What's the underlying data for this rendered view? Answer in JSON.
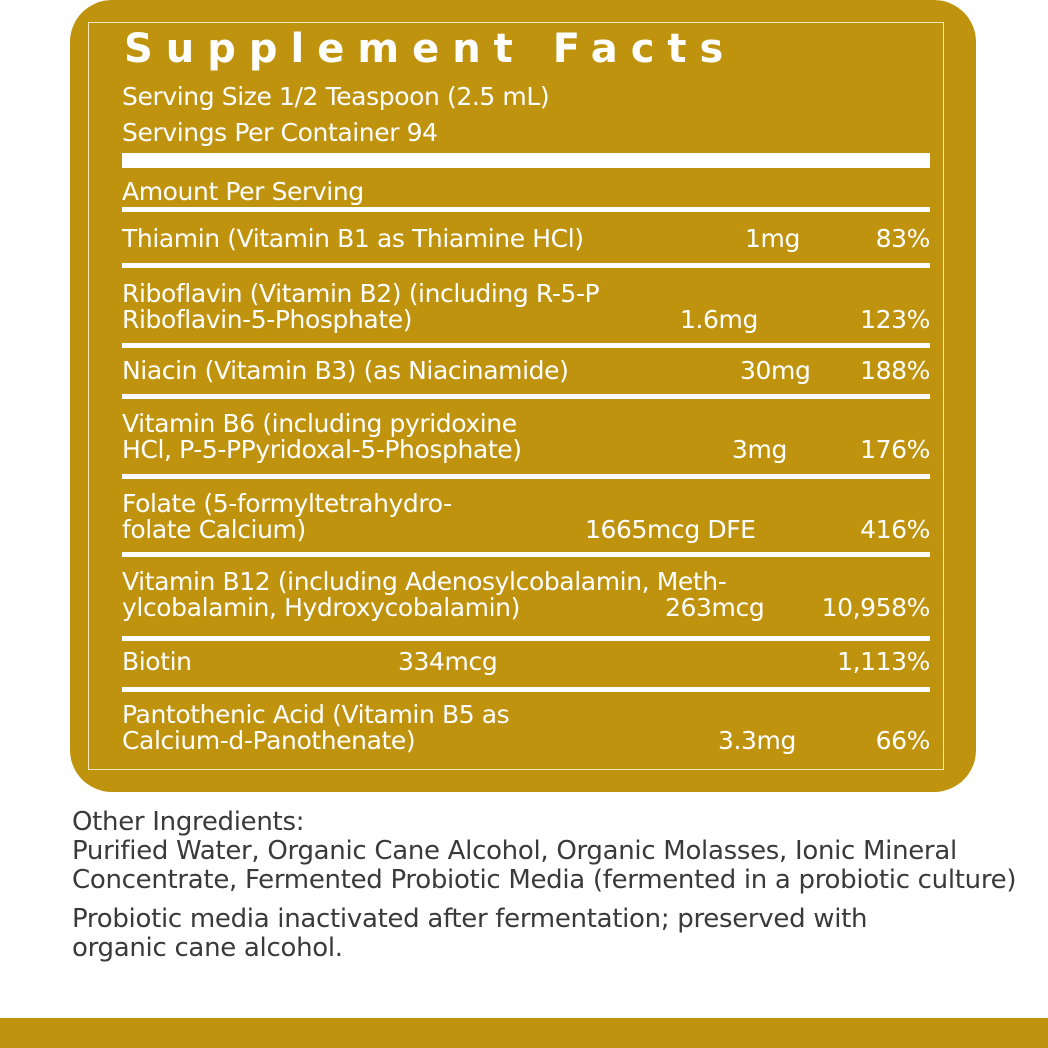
{
  "label": {
    "title": "Supplement Facts",
    "serving_size": "Serving Size 1/2 Teaspoon (2.5 mL)",
    "servings_per_container": "Servings Per Container 94",
    "amount_header": "Amount Per Serving",
    "rows": [
      {
        "name": "Thiamin (Vitamin B1 as Thiamine HCl)",
        "amount": "1mg",
        "dv": "83%"
      },
      {
        "name": "Riboflavin (Vitamin B2) (including R-5-P\nRiboflavin-5-Phosphate)",
        "amount": "1.6mg",
        "dv": "123%"
      },
      {
        "name": "Niacin (Vitamin B3) (as Niacinamide)",
        "amount": "30mg",
        "dv": "188%"
      },
      {
        "name": "Vitamin B6 (including pyridoxine\nHCl, P-5-PPyridoxal-5-Phosphate)",
        "amount": "3mg",
        "dv": "176%"
      },
      {
        "name": "Folate (5-formyltetrahydro-\nfolate Calcium)",
        "amount": "1665mcg DFE",
        "dv": "416%"
      },
      {
        "name": "Vitamin B12 (including Adenosylcobalamin, Meth-\nylcobalamin, Hydroxycobalamin)",
        "amount": "263mcg",
        "dv": "10,958%"
      },
      {
        "name": "Biotin",
        "amount": "334mcg",
        "dv": "1,113%"
      },
      {
        "name": "Pantothenic Acid (Vitamin B5 as\nCalcium-d-Panothenate)",
        "amount": "3.3mg",
        "dv": "66%"
      }
    ]
  },
  "other_ingredients": {
    "heading": "Other Ingredients:",
    "text": "Purified Water, Organic Cane Alcohol, Organic Molasses, Ionic Mineral Concentrate, Fermented Probiotic Media (fermented in a probiotic culture)",
    "note": "Probiotic media inactivated after fermentation; preserved with organic cane alcohol."
  },
  "colors": {
    "label_background": "#BF930D",
    "label_text": "#FFFFFF",
    "body_text": "#3A3A3A"
  }
}
